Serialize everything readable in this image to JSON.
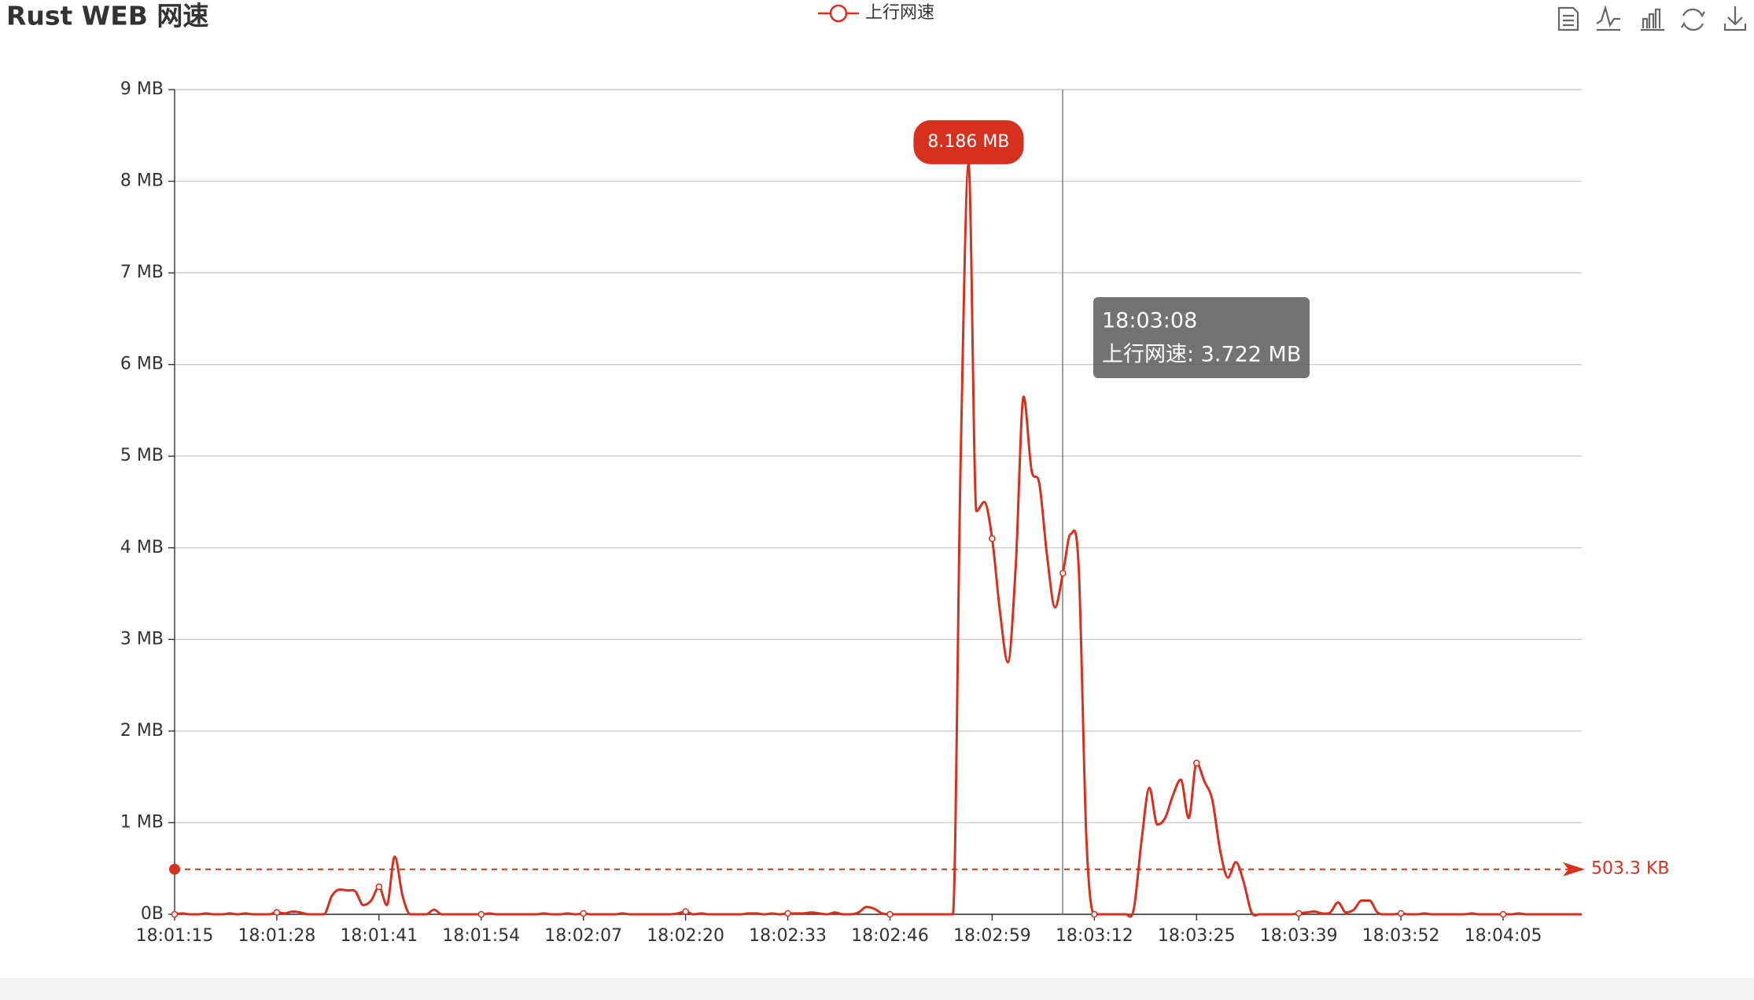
{
  "chart_data": {
    "type": "line",
    "title": "Rust WEB 网速",
    "categories": [
      "18:01:15",
      null,
      null,
      null,
      null,
      null,
      null,
      null,
      null,
      null,
      null,
      null,
      null,
      "18:01:28",
      null,
      null,
      null,
      null,
      null,
      null,
      null,
      null,
      null,
      null,
      null,
      null,
      "18:01:41",
      null,
      null,
      null,
      null,
      null,
      null,
      null,
      null,
      null,
      null,
      null,
      null,
      "18:01:54",
      null,
      null,
      null,
      null,
      null,
      null,
      null,
      null,
      null,
      null,
      null,
      null,
      "18:02:07",
      null,
      null,
      null,
      null,
      null,
      null,
      null,
      null,
      null,
      null,
      null,
      null,
      "18:02:20",
      null,
      null,
      null,
      null,
      null,
      null,
      null,
      null,
      null,
      null,
      null,
      null,
      "18:02:33",
      null,
      null,
      null,
      null,
      null,
      null,
      null,
      null,
      null,
      null,
      null,
      null,
      "18:02:46",
      null,
      null,
      null,
      null,
      null,
      null,
      null,
      null,
      null,
      null,
      null,
      null,
      "18:02:59",
      null,
      null,
      null,
      null,
      null,
      null,
      null,
      null,
      null,
      null,
      null,
      null,
      "18:03:12",
      null,
      null,
      null,
      null,
      null,
      null,
      null,
      null,
      null,
      null,
      null,
      null,
      "18:03:25",
      null,
      null,
      null,
      null,
      null,
      null,
      null,
      null,
      null,
      null,
      null,
      null,
      "18:03:39",
      null,
      null,
      null,
      null,
      null,
      null,
      null,
      null,
      null,
      null,
      null,
      null,
      "18:03:52",
      null,
      null,
      null,
      null,
      null,
      null,
      null,
      null,
      null,
      null,
      null,
      null,
      "18:04:05",
      null,
      null,
      null,
      null,
      null,
      null,
      null,
      null,
      null,
      null
    ],
    "series": [
      {
        "name": "上行网速",
        "color": "#d6301f",
        "values": [
          0,
          0.01,
          0,
          0,
          0.01,
          0,
          0,
          0.01,
          0,
          0.01,
          0,
          0,
          0,
          0.02,
          0.01,
          0.03,
          0.02,
          0,
          0,
          0,
          0.2,
          0.27,
          0.26,
          0.25,
          0.1,
          0.15,
          0.3,
          0.1,
          0.63,
          0.2,
          0,
          0,
          0,
          0.05,
          0,
          0,
          0,
          0,
          0,
          0,
          0.01,
          0,
          0,
          0,
          0,
          0,
          0,
          0.01,
          0,
          0,
          0.01,
          0,
          0.01,
          0,
          0,
          0,
          0,
          0.01,
          0,
          0,
          0,
          0,
          0,
          0,
          0.01,
          0.03,
          0,
          0.01,
          0,
          0,
          0,
          0,
          0,
          0.01,
          0.01,
          0,
          0.01,
          0,
          0.01,
          0.01,
          0.01,
          0.02,
          0.01,
          0,
          0.02,
          0,
          0,
          0.02,
          0.08,
          0.06,
          0.01,
          0,
          0,
          0,
          0,
          0,
          0,
          0,
          0,
          0,
          5.0,
          8.186,
          4.4,
          4.5,
          4.1,
          3.3,
          2.75,
          3.8,
          5.65,
          4.85,
          4.7,
          3.9,
          3.35,
          3.722,
          4.15,
          3.8,
          0.8,
          0,
          0,
          0,
          0,
          0,
          0.05,
          0.8,
          1.38,
          0.98,
          1.05,
          1.3,
          1.47,
          1.05,
          1.65,
          1.45,
          1.25,
          0.7,
          0.4,
          0.57,
          0.35,
          0.02,
          0,
          0,
          0,
          0,
          0,
          0.01,
          0.02,
          0.03,
          0.01,
          0.02,
          0.13,
          0.02,
          0.05,
          0.15,
          0.15,
          0.02,
          0,
          0,
          0.01,
          0,
          0,
          0.01,
          0,
          0,
          0,
          0,
          0,
          0.01,
          0,
          0,
          0,
          0,
          0,
          0.01,
          0,
          0,
          0,
          0,
          0,
          0,
          0,
          0
        ]
      }
    ],
    "ylim": [
      0,
      9
    ],
    "yticks": [
      {
        "value": 0,
        "label": "0B"
      },
      {
        "value": 1,
        "label": "1 MB"
      },
      {
        "value": 2,
        "label": "2 MB"
      },
      {
        "value": 3,
        "label": "3 MB"
      },
      {
        "value": 4,
        "label": "4 MB"
      },
      {
        "value": 5,
        "label": "5 MB"
      },
      {
        "value": 6,
        "label": "6 MB"
      },
      {
        "value": 7,
        "label": "7 MB"
      },
      {
        "value": 8,
        "label": "8 MB"
      },
      {
        "value": 9,
        "label": "9 MB"
      }
    ],
    "grid": true,
    "legend": "top",
    "mark_point": {
      "value": 8.186,
      "label": "8.186 MB"
    },
    "mark_line": {
      "value": 0.4915,
      "label": "503.3 KB"
    },
    "tooltip": {
      "title": "18:03:08",
      "text": "上行网速: 3.722 MB"
    }
  }
}
